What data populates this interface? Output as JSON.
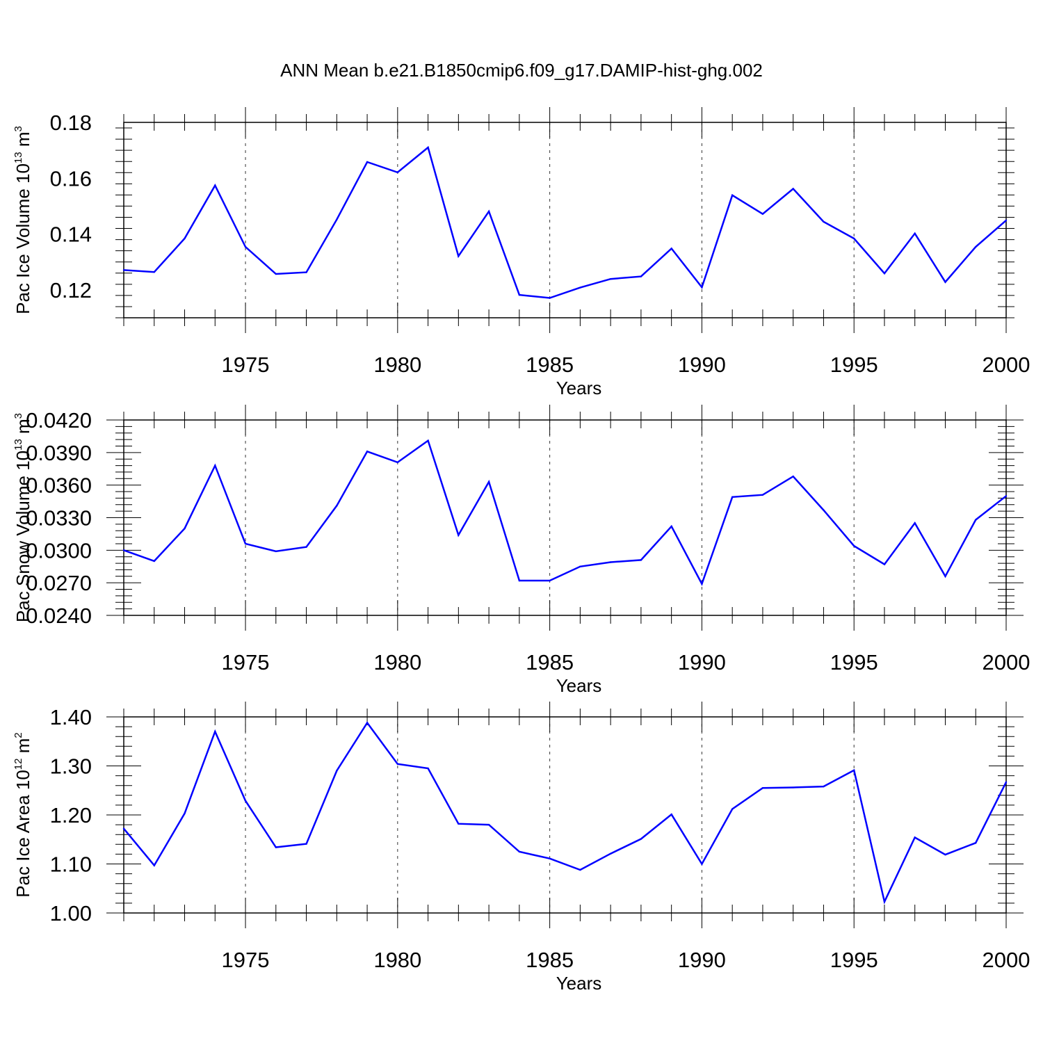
{
  "figure_title": "ANN Mean b.e21.B1850cmip6.f09_g17.DAMIP-hist-ghg.002",
  "chart_data": [
    {
      "type": "line",
      "title": "ANN Mean b.e21.B1850cmip6.f09_g17.DAMIP-hist-ghg.002",
      "xlabel": "Years",
      "ylabel": "Pac Ice Volume 10",
      "ylabel_exp": "13",
      "ylabel_unit": " m",
      "ylabel_unit_exp": "3",
      "xlim": [
        1971,
        2000
      ],
      "ylim": [
        0.11,
        0.18
      ],
      "yticks": [
        "0.12",
        "0.14",
        "0.16",
        "0.18"
      ],
      "xticks": [
        "1975",
        "1980",
        "1985",
        "1990",
        "1995",
        "2000"
      ],
      "grid": "vertical dashed at major x ticks",
      "line_color": "#0000ff",
      "x": [
        1971,
        1972,
        1973,
        1974,
        1975,
        1976,
        1977,
        1978,
        1979,
        1980,
        1981,
        1982,
        1983,
        1984,
        1985,
        1986,
        1987,
        1988,
        1989,
        1990,
        1991,
        1992,
        1993,
        1994,
        1995,
        1996,
        1997,
        1998,
        1999,
        2000
      ],
      "values": [
        0.1271,
        0.1264,
        0.1384,
        0.1574,
        0.1354,
        0.1257,
        0.1263,
        0.1452,
        0.1658,
        0.1621,
        0.171,
        0.1321,
        0.1481,
        0.1182,
        0.1171,
        0.1208,
        0.1239,
        0.1248,
        0.1348,
        0.1209,
        0.1539,
        0.1472,
        0.1562,
        0.1444,
        0.1384,
        0.1259,
        0.1402,
        0.1228,
        0.1354,
        0.1449
      ]
    },
    {
      "type": "line",
      "xlabel": "Years",
      "ylabel": "Pac Snow Volume 10",
      "ylabel_exp": "13",
      "ylabel_unit": " m",
      "ylabel_unit_exp": "3",
      "xlim": [
        1971,
        2000
      ],
      "ylim": [
        0.024,
        0.042
      ],
      "yticks": [
        "0.0240",
        "0.0270",
        "0.0300",
        "0.0330",
        "0.0360",
        "0.0390",
        "0.0420"
      ],
      "xticks": [
        "1975",
        "1980",
        "1985",
        "1990",
        "1995",
        "2000"
      ],
      "grid": "vertical dashed at major x ticks",
      "line_color": "#0000ff",
      "x": [
        1971,
        1972,
        1973,
        1974,
        1975,
        1976,
        1977,
        1978,
        1979,
        1980,
        1981,
        1982,
        1983,
        1984,
        1985,
        1986,
        1987,
        1988,
        1989,
        1990,
        1991,
        1992,
        1993,
        1994,
        1995,
        1996,
        1997,
        1998,
        1999,
        2000
      ],
      "values": [
        0.03,
        0.029,
        0.032,
        0.0378,
        0.0306,
        0.0299,
        0.0303,
        0.0341,
        0.0391,
        0.0381,
        0.0401,
        0.0314,
        0.0363,
        0.0272,
        0.0272,
        0.0285,
        0.0289,
        0.0291,
        0.0322,
        0.0269,
        0.0349,
        0.0351,
        0.0368,
        0.0337,
        0.0304,
        0.0287,
        0.0325,
        0.0276,
        0.0328,
        0.035
      ]
    },
    {
      "type": "line",
      "xlabel": "Years",
      "ylabel": "Pac Ice Area 10",
      "ylabel_exp": "12",
      "ylabel_unit": " m",
      "ylabel_unit_exp": "2",
      "xlim": [
        1971,
        2000
      ],
      "ylim": [
        1.0,
        1.4
      ],
      "yticks": [
        "1.00",
        "1.10",
        "1.20",
        "1.30",
        "1.40"
      ],
      "xticks": [
        "1975",
        "1980",
        "1985",
        "1990",
        "1995",
        "2000"
      ],
      "grid": "vertical dashed at major x ticks",
      "line_color": "#0000ff",
      "x": [
        1971,
        1972,
        1973,
        1974,
        1975,
        1976,
        1977,
        1978,
        1979,
        1980,
        1981,
        1982,
        1983,
        1984,
        1985,
        1986,
        1987,
        1988,
        1989,
        1990,
        1991,
        1992,
        1993,
        1994,
        1995,
        1996,
        1997,
        1998,
        1999,
        2000
      ],
      "values": [
        1.172,
        1.097,
        1.203,
        1.37,
        1.229,
        1.134,
        1.141,
        1.29,
        1.388,
        1.304,
        1.295,
        1.182,
        1.18,
        1.125,
        1.111,
        1.088,
        1.121,
        1.151,
        1.201,
        1.1,
        1.212,
        1.255,
        1.256,
        1.258,
        1.291,
        1.023,
        1.154,
        1.119,
        1.143,
        1.267
      ]
    }
  ]
}
